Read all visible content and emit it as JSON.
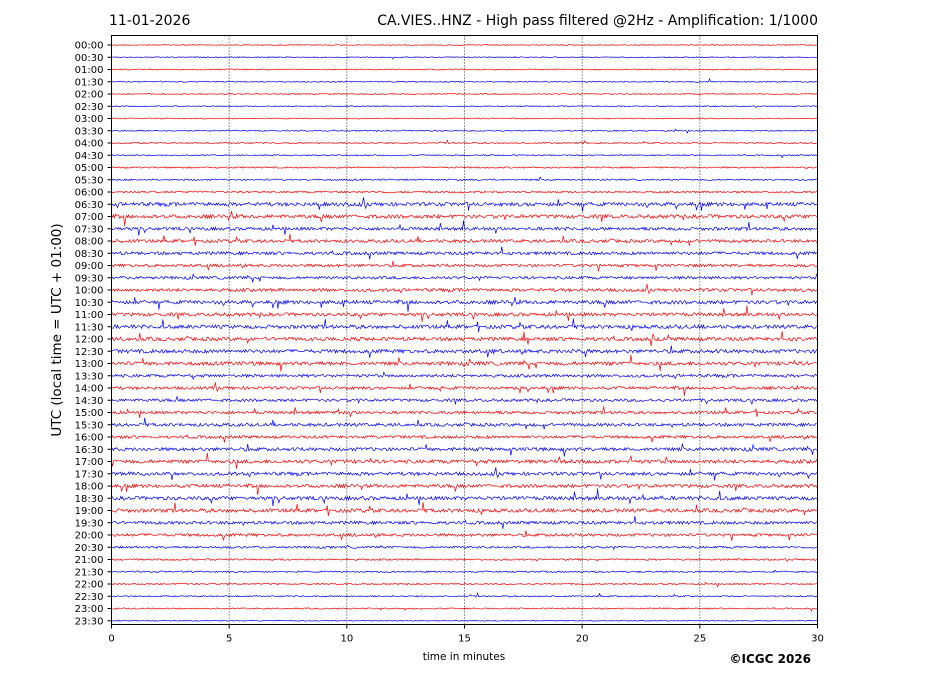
{
  "chart_data": {
    "type": "line",
    "title_left": "11-01-2026",
    "title_right": "CA.VIES..HNZ - High pass filtered @2Hz - Amplification: 1/1000",
    "xlabel": "time in minutes",
    "ylabel": "UTC (local time = UTC + 01:00)",
    "xlim": [
      0,
      30
    ],
    "x_ticks": [
      "0",
      "5",
      "10",
      "15",
      "20",
      "25",
      "30"
    ],
    "x_tick_values": [
      0,
      5,
      10,
      15,
      20,
      25,
      30
    ],
    "x_grid": "dotted vertical at every 5 minutes",
    "copyright": "©ICGC 2026",
    "colors": {
      "odd_hour_trace": "#ff0000",
      "half_hour_trace": "#0000ff",
      "even_hour_trace": "#ff0000"
    },
    "trace_colors_cycle": [
      "#ff0000",
      "#0000ff"
    ],
    "rows": [
      {
        "label": "00:00",
        "color": "#ff0000",
        "activity": 0.02
      },
      {
        "label": "00:30",
        "color": "#0000ff",
        "activity": 0.05
      },
      {
        "label": "01:00",
        "color": "#ff0000",
        "activity": 0.06
      },
      {
        "label": "01:30",
        "color": "#0000ff",
        "activity": 0.07
      },
      {
        "label": "02:00",
        "color": "#ff0000",
        "activity": 0.06
      },
      {
        "label": "02:30",
        "color": "#0000ff",
        "activity": 0.06
      },
      {
        "label": "03:00",
        "color": "#ff0000",
        "activity": 0.04
      },
      {
        "label": "03:30",
        "color": "#0000ff",
        "activity": 0.08
      },
      {
        "label": "04:00",
        "color": "#ff0000",
        "activity": 0.09
      },
      {
        "label": "04:30",
        "color": "#0000ff",
        "activity": 0.08
      },
      {
        "label": "05:00",
        "color": "#ff0000",
        "activity": 0.14
      },
      {
        "label": "05:30",
        "color": "#0000ff",
        "activity": 0.15
      },
      {
        "label": "06:00",
        "color": "#ff0000",
        "activity": 0.22
      },
      {
        "label": "06:30",
        "color": "#0000ff",
        "activity": 0.55
      },
      {
        "label": "07:00",
        "color": "#ff0000",
        "activity": 0.55
      },
      {
        "label": "07:30",
        "color": "#0000ff",
        "activity": 0.45
      },
      {
        "label": "08:00",
        "color": "#ff0000",
        "activity": 0.45
      },
      {
        "label": "08:30",
        "color": "#0000ff",
        "activity": 0.45
      },
      {
        "label": "09:00",
        "color": "#ff0000",
        "activity": 0.4
      },
      {
        "label": "09:30",
        "color": "#0000ff",
        "activity": 0.38
      },
      {
        "label": "10:00",
        "color": "#ff0000",
        "activity": 0.45
      },
      {
        "label": "10:30",
        "color": "#0000ff",
        "activity": 0.55
      },
      {
        "label": "11:00",
        "color": "#ff0000",
        "activity": 0.5
      },
      {
        "label": "11:30",
        "color": "#0000ff",
        "activity": 0.55
      },
      {
        "label": "12:00",
        "color": "#ff0000",
        "activity": 0.55
      },
      {
        "label": "12:30",
        "color": "#0000ff",
        "activity": 0.55
      },
      {
        "label": "13:00",
        "color": "#ff0000",
        "activity": 0.55
      },
      {
        "label": "13:30",
        "color": "#0000ff",
        "activity": 0.42
      },
      {
        "label": "14:00",
        "color": "#ff0000",
        "activity": 0.42
      },
      {
        "label": "14:30",
        "color": "#0000ff",
        "activity": 0.4
      },
      {
        "label": "15:00",
        "color": "#ff0000",
        "activity": 0.4
      },
      {
        "label": "15:30",
        "color": "#0000ff",
        "activity": 0.45
      },
      {
        "label": "16:00",
        "color": "#ff0000",
        "activity": 0.4
      },
      {
        "label": "16:30",
        "color": "#0000ff",
        "activity": 0.5
      },
      {
        "label": "17:00",
        "color": "#ff0000",
        "activity": 0.55
      },
      {
        "label": "17:30",
        "color": "#0000ff",
        "activity": 0.5
      },
      {
        "label": "18:00",
        "color": "#ff0000",
        "activity": 0.5
      },
      {
        "label": "18:30",
        "color": "#0000ff",
        "activity": 0.55
      },
      {
        "label": "19:00",
        "color": "#ff0000",
        "activity": 0.55
      },
      {
        "label": "19:30",
        "color": "#0000ff",
        "activity": 0.45
      },
      {
        "label": "20:00",
        "color": "#ff0000",
        "activity": 0.4
      },
      {
        "label": "20:30",
        "color": "#0000ff",
        "activity": 0.25
      },
      {
        "label": "21:00",
        "color": "#ff0000",
        "activity": 0.18
      },
      {
        "label": "21:30",
        "color": "#0000ff",
        "activity": 0.15
      },
      {
        "label": "22:00",
        "color": "#ff0000",
        "activity": 0.12
      },
      {
        "label": "22:30",
        "color": "#0000ff",
        "activity": 0.12
      },
      {
        "label": "23:00",
        "color": "#ff0000",
        "activity": 0.1
      },
      {
        "label": "23:30",
        "color": "#0000ff",
        "activity": 0.02
      }
    ]
  }
}
